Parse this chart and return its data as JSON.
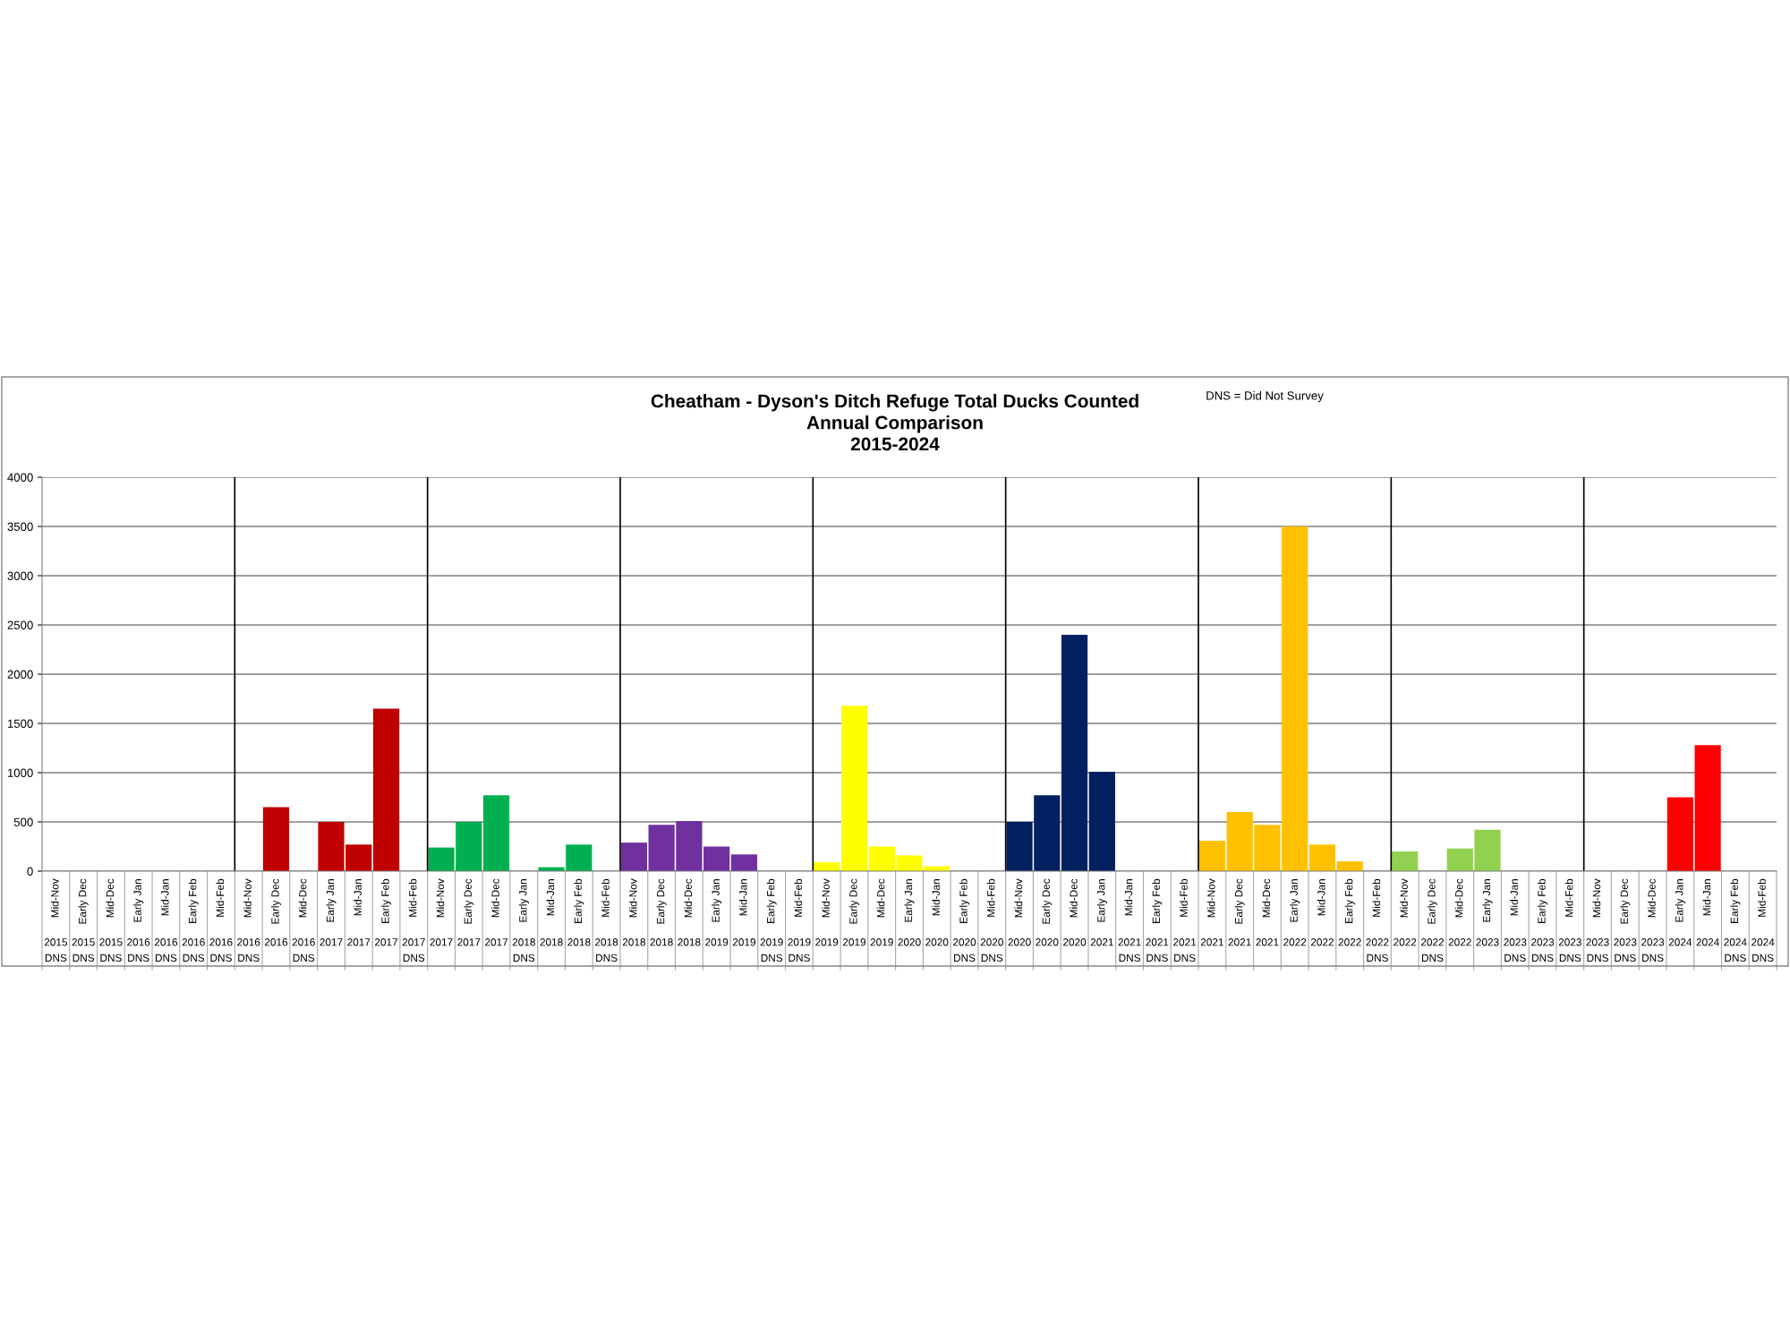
{
  "chart_data": {
    "type": "bar",
    "title": "Cheatham - Dyson's Ditch Refuge Total Ducks Counted\nAnnual Comparison\n2015-2024",
    "annotations": [
      "DNS = Did Not Survey"
    ],
    "categories": [
      "Mid-Nov\n2015\nDNS",
      "Early Dec\n2015\nDNS",
      "Mid-Dec\n2015\nDNS",
      "Early Jan\n2016\nDNS",
      "Mid-Jan\n2016\nDNS",
      "Early Feb\n2016\nDNS",
      "Mid-Feb\n2016\nDNS",
      "Mid-Nov\n2016\nDNS",
      "Early Dec\n2016",
      "Mid-Dec\n2016\nDNS",
      "Early Jan\n2017",
      "Mid-Jan\n2017",
      "Early Feb\n2017",
      "Mid-Feb\n2017\nDNS",
      "Mid-Nov\n2017",
      "Early Dec\n2017",
      "Mid-Dec\n2017",
      "Early Jan\n2018\nDNS",
      "Mid-Jan\n2018",
      "Early Feb\n2018",
      "Mid-Feb\n2018\nDNS",
      "Mid-Nov\n2018",
      "Early Dec\n2018",
      "Mid-Dec\n2018",
      "Early Jan\n2019",
      "Mid-Jan\n2019",
      "Early Feb\n2019\nDNS",
      "Mid-Feb\n2019\nDNS",
      "Mid-Nov\n2019",
      "Early Dec\n2019",
      "Mid-Dec\n2019",
      "Early Jan\n2020",
      "Mid-Jan\n2020",
      "Early Feb\n2020\nDNS",
      "Mid-Feb\n2020\nDNS",
      "Mid-Nov\n2020",
      "Early Dec\n2020",
      "Mid-Dec\n2020",
      "Early Jan\n2021",
      "Mid-Jan\n2021\nDNS",
      "Early Feb\n2021\nDNS",
      "Mid-Feb\n2021\nDNS",
      "Mid-Nov\n2021",
      "Early Dec\n2021",
      "Mid-Dec\n2021",
      "Early Jan\n2022",
      "Mid-Jan\n2022",
      "Early Feb\n2022",
      "Mid-Feb\n2022\nDNS",
      "Mid-Nov\n2022",
      "Early Dec\n2022\nDNS",
      "Mid-Dec\n2022",
      "Early Jan\n2023",
      "Mid-Jan\n2023\nDNS",
      "Early Feb\n2023\nDNS",
      "Mid-Feb\n2023\nDNS",
      "Mid-Nov\n2023\nDNS",
      "Early Dec\n2023\nDNS",
      "Mid-Dec\n2023\nDNS",
      "Early Jan\n2024",
      "Mid-Jan\n2024",
      "Early Feb\n2024\nDNS",
      "Mid-Feb\n2024\nDNS"
    ],
    "values": [
      null,
      null,
      null,
      null,
      null,
      null,
      null,
      null,
      650,
      null,
      500,
      270,
      1650,
      null,
      240,
      500,
      770,
      null,
      40,
      270,
      null,
      290,
      470,
      510,
      250,
      170,
      null,
      null,
      90,
      1680,
      250,
      160,
      50,
      null,
      null,
      500,
      770,
      2400,
      1010,
      null,
      null,
      null,
      310,
      600,
      470,
      3500,
      270,
      100,
      null,
      200,
      null,
      230,
      420,
      null,
      null,
      null,
      null,
      null,
      null,
      750,
      1280,
      null,
      null
    ],
    "colors": [
      "#c00000",
      "#c00000",
      "#c00000",
      "#c00000",
      "#c00000",
      "#c00000",
      "#c00000",
      "#c00000",
      "#c00000",
      "#c00000",
      "#c00000",
      "#c00000",
      "#c00000",
      "#c00000",
      "#00b050",
      "#00b050",
      "#00b050",
      "#00b050",
      "#00b050",
      "#00b050",
      "#00b050",
      "#7030a0",
      "#7030a0",
      "#7030a0",
      "#7030a0",
      "#7030a0",
      "#7030a0",
      "#7030a0",
      "#ffff00",
      "#ffff00",
      "#ffff00",
      "#ffff00",
      "#ffff00",
      "#ffff00",
      "#ffff00",
      "#002060",
      "#002060",
      "#002060",
      "#002060",
      "#002060",
      "#002060",
      "#002060",
      "#ffc000",
      "#ffc000",
      "#ffc000",
      "#ffc000",
      "#ffc000",
      "#ffc000",
      "#ffc000",
      "#92d050",
      "#92d050",
      "#92d050",
      "#92d050",
      "#92d050",
      "#92d050",
      "#92d050",
      "#ff0000",
      "#ff0000",
      "#ff0000",
      "#ff0000",
      "#ff0000",
      "#ff0000",
      "#ff0000"
    ],
    "ylim": [
      0,
      4000
    ],
    "yticks": [
      0,
      500,
      1000,
      1500,
      2000,
      2500,
      3000,
      3500,
      4000
    ],
    "grid": "y"
  }
}
